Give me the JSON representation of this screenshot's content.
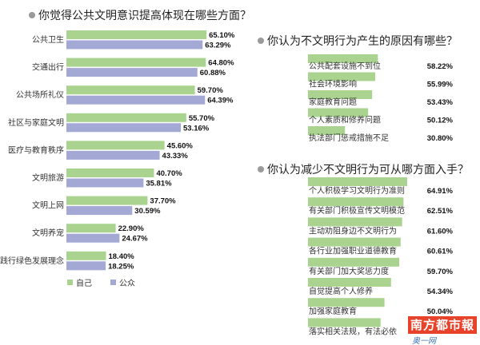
{
  "colors": {
    "self": "#a9d38f",
    "public": "#a3a8d4",
    "bullet": "#9a9a9a"
  },
  "chart_data": [
    {
      "type": "bar",
      "orientation": "horizontal",
      "title": "你觉得公共文明意识提高体现在哪些方面？",
      "categories": [
        "公共卫生",
        "交通出行",
        "公共场所礼仪",
        "社区与家庭文明",
        "医疗与教育秩序",
        "文明旅游",
        "文明上网",
        "文明养宠",
        "践行绿色发展理念"
      ],
      "series": [
        {
          "name": "自己",
          "values": [
            65.1,
            64.8,
            59.7,
            55.7,
            45.6,
            40.7,
            37.7,
            22.9,
            18.4
          ],
          "labels": [
            "65.10%",
            "64.80%",
            "59.70%",
            "55.70%",
            "45.60%",
            "40.70%",
            "37.70%",
            "22.90%",
            "18.40%"
          ]
        },
        {
          "name": "公众",
          "values": [
            63.29,
            60.88,
            64.39,
            53.16,
            43.33,
            35.81,
            30.59,
            24.67,
            18.25
          ],
          "labels": [
            "63.29%",
            "60.88%",
            "64.39%",
            "53.16%",
            "43.33%",
            "35.81%",
            "30.59%",
            "24.67%",
            "18.25%"
          ]
        }
      ],
      "legend": [
        "自己",
        "公众"
      ],
      "legend_position": "bottom-left",
      "xlim": [
        0,
        70
      ]
    },
    {
      "type": "bar",
      "orientation": "horizontal",
      "title": "你认为不文明行为产生的原因有哪些？",
      "categories": [
        "公共配套设施不到位",
        "社会环境影响",
        "家庭教育问题",
        "个人素质和修养问题",
        "执法部门惩戒措施不足"
      ],
      "values": [
        58.22,
        55.99,
        53.43,
        50.12,
        30.8
      ],
      "labels": [
        "58.22%",
        "55.99%",
        "53.43%",
        "50.12%",
        "30.80%"
      ],
      "xlim": [
        0,
        70
      ]
    },
    {
      "type": "bar",
      "orientation": "horizontal",
      "title": "你认为减少不文明行为可从哪方面入手？",
      "categories": [
        "个人积极学习文明行为准则",
        "有关部门积极宣传文明模范",
        "主动劝阻身边不文明行为",
        "各行业加强职业道德教育",
        "有关部门加大奖惩力度",
        "自觉提高个人修养",
        "加强家庭教育",
        "落实相关法规，有法必依"
      ],
      "values": [
        64.91,
        62.51,
        61.6,
        60.61,
        59.7,
        54.34,
        50.04,
        null
      ],
      "labels": [
        "64.91%",
        "62.51%",
        "61.60%",
        "60.61%",
        "59.70%",
        "54.34%",
        "50.04%",
        ""
      ],
      "xlim": [
        0,
        70
      ]
    }
  ],
  "logo": {
    "name": "南方都市報",
    "sub": "奥一网 oeeee.com"
  }
}
